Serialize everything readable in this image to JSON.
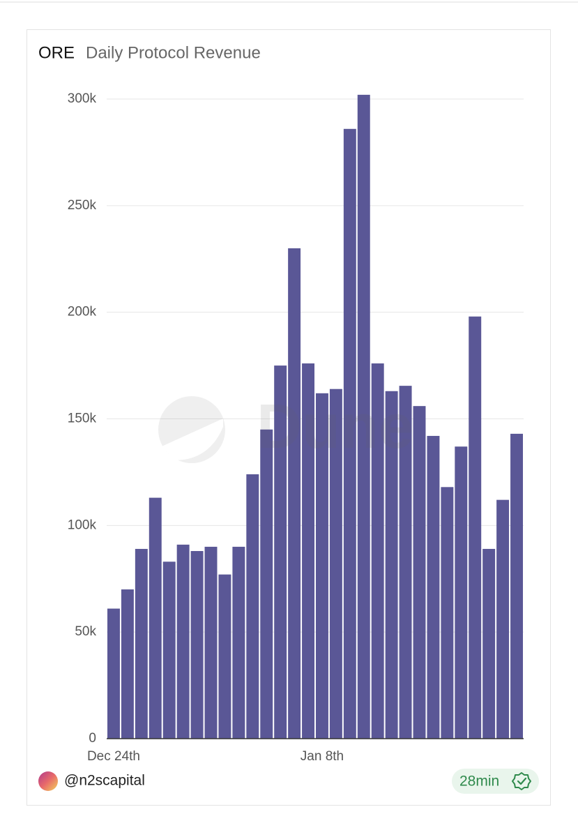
{
  "chart_data": {
    "type": "bar",
    "title": "ORE",
    "subtitle": "Daily Protocol Revenue",
    "watermark": "Dune",
    "categories": [
      "Dec 24th",
      null,
      null,
      null,
      null,
      null,
      null,
      null,
      null,
      null,
      null,
      null,
      null,
      null,
      null,
      "Jan 8th",
      null,
      null,
      null,
      null,
      null,
      null,
      null,
      null,
      null,
      null,
      null,
      null,
      null,
      null
    ],
    "values": [
      61000,
      70000,
      89000,
      113000,
      83000,
      91000,
      88000,
      90000,
      77000,
      90000,
      124000,
      145000,
      175000,
      230000,
      176000,
      162000,
      164000,
      286000,
      302000,
      176000,
      163000,
      165500,
      156000,
      142000,
      118000,
      137000,
      198000,
      89000,
      112000,
      143000
    ],
    "color": "#5a5796",
    "ylim": [
      0,
      300000
    ],
    "yticks": [
      0,
      {
        "value": 50000,
        "label": "50k"
      },
      {
        "value": 100000,
        "label": "100k"
      },
      {
        "value": 150000,
        "label": "150k"
      },
      {
        "value": 200000,
        "label": "200k"
      },
      {
        "value": 250000,
        "label": "250k"
      },
      {
        "value": 300000,
        "label": "300k"
      }
    ],
    "grid": true
  },
  "footer": {
    "author": "@n2scapital",
    "freshness": "28min"
  }
}
